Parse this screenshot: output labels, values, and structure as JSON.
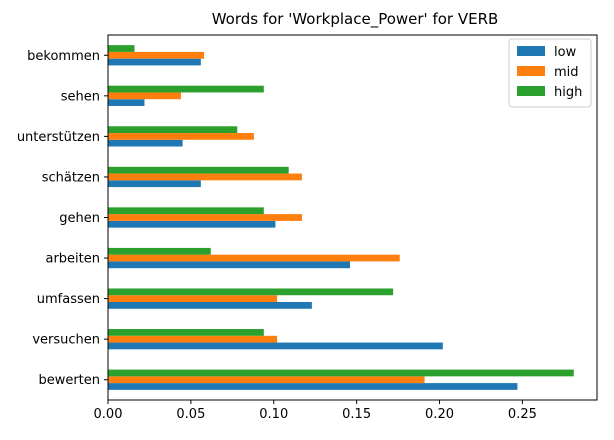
{
  "chart_data": {
    "type": "bar",
    "orientation": "horizontal",
    "title": "Words for 'Workplace_Power' for VERB",
    "xlabel": "",
    "ylabel": "",
    "xlim": [
      0,
      0.295
    ],
    "xticks": [
      0.0,
      0.05,
      0.1,
      0.15,
      0.2,
      0.25
    ],
    "xtick_labels": [
      "0.00",
      "0.05",
      "0.10",
      "0.15",
      "0.20",
      "0.25"
    ],
    "grid": false,
    "legend_position": "top-right",
    "categories": [
      "bewerten",
      "versuchen",
      "umfassen",
      "arbeiten",
      "gehen",
      "schätzen",
      "unterstützen",
      "sehen",
      "bekommen"
    ],
    "series": [
      {
        "name": "low",
        "color": "#1f77b4",
        "values": [
          0.247,
          0.202,
          0.123,
          0.146,
          0.101,
          0.056,
          0.045,
          0.022,
          0.056
        ]
      },
      {
        "name": "mid",
        "color": "#ff7f0e",
        "values": [
          0.191,
          0.102,
          0.102,
          0.176,
          0.117,
          0.117,
          0.088,
          0.044,
          0.058
        ]
      },
      {
        "name": "high",
        "color": "#2ca02c",
        "values": [
          0.281,
          0.094,
          0.172,
          0.062,
          0.094,
          0.109,
          0.078,
          0.094,
          0.016
        ]
      }
    ]
  }
}
